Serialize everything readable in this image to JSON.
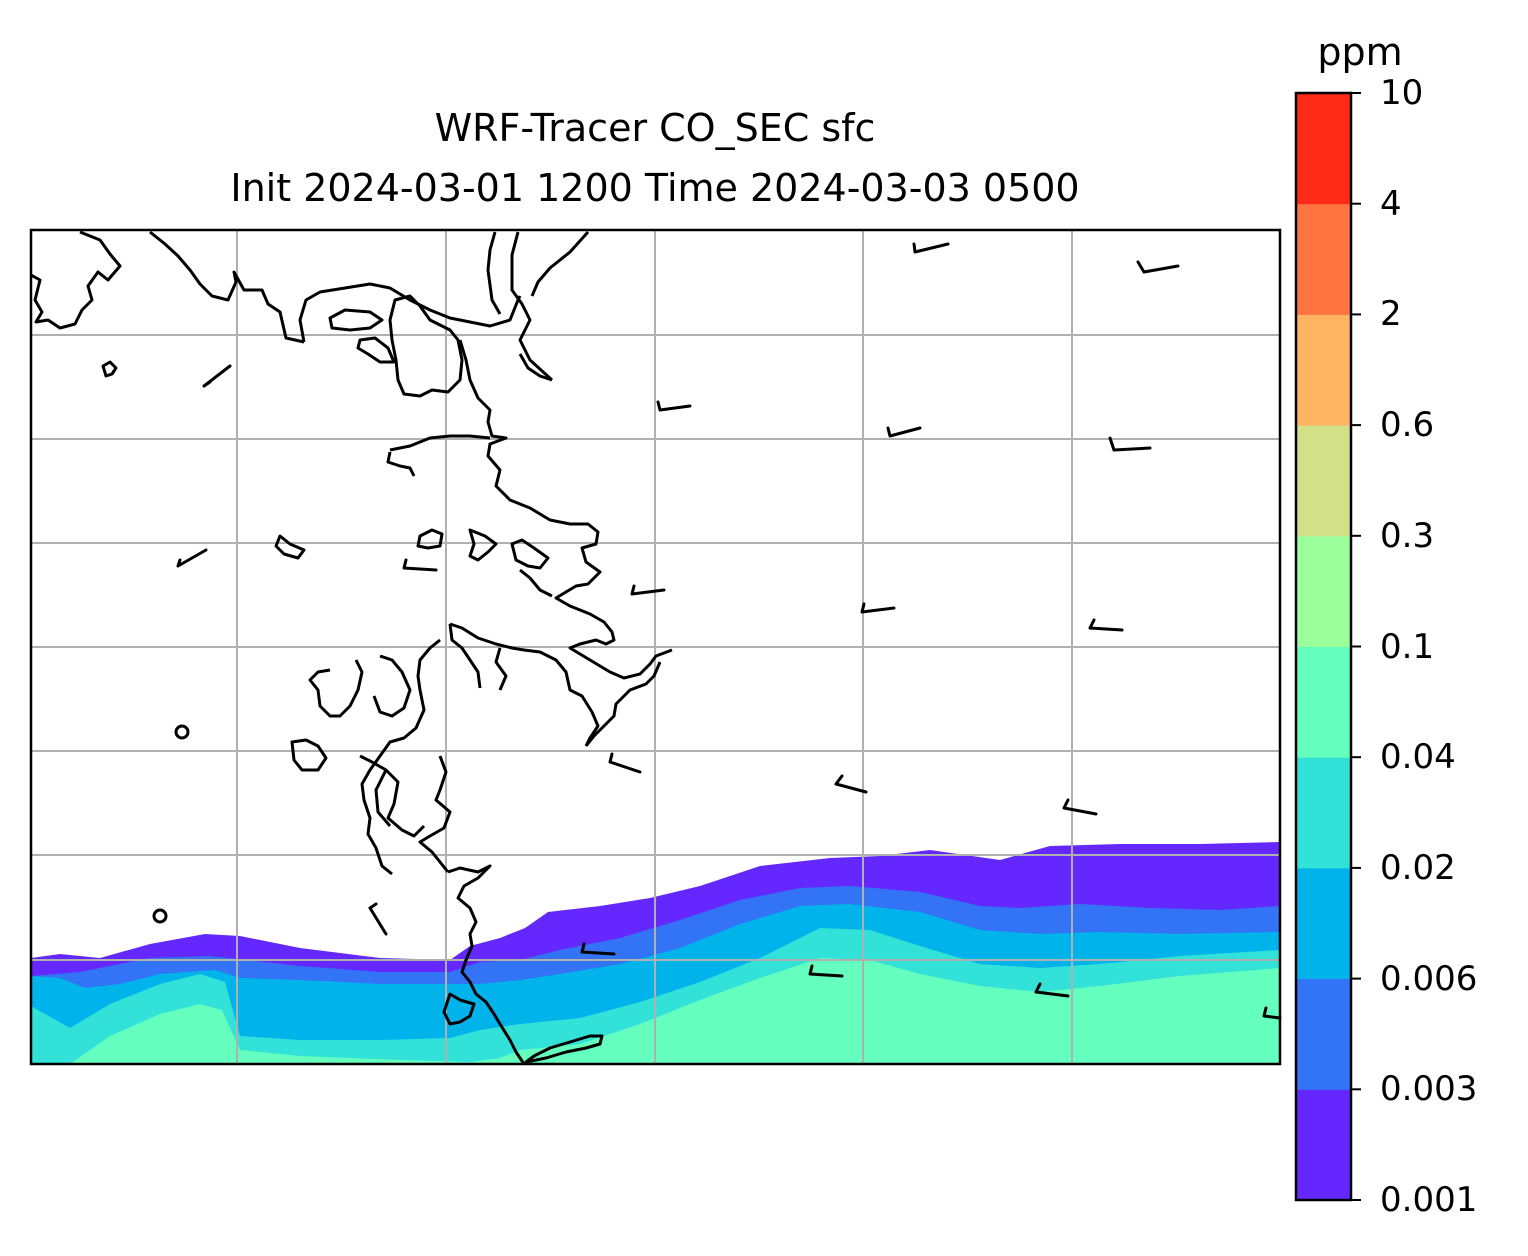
{
  "title": {
    "line1": "WRF-Tracer CO_SEC sfc",
    "line2": "Init 2024-03-01 1200 Time 2024-03-03 0500"
  },
  "colorbar": {
    "unit": "ppm",
    "ticks": [
      "0.001",
      "0.003",
      "0.006",
      "0.02",
      "0.04",
      "0.1",
      "0.3",
      "0.6",
      "2",
      "4",
      "10"
    ],
    "colors": [
      "#6428ff",
      "#3274f5",
      "#00b4eb",
      "#32e1d7",
      "#64ffbe",
      "#9bff9b",
      "#d2e187",
      "#ffb464",
      "#ff7441",
      "#ff2a18"
    ]
  },
  "map": {
    "wind_barbs": 24,
    "features": [
      "coastline",
      "gridlines",
      "filled-contours",
      "wind-barbs"
    ]
  }
}
